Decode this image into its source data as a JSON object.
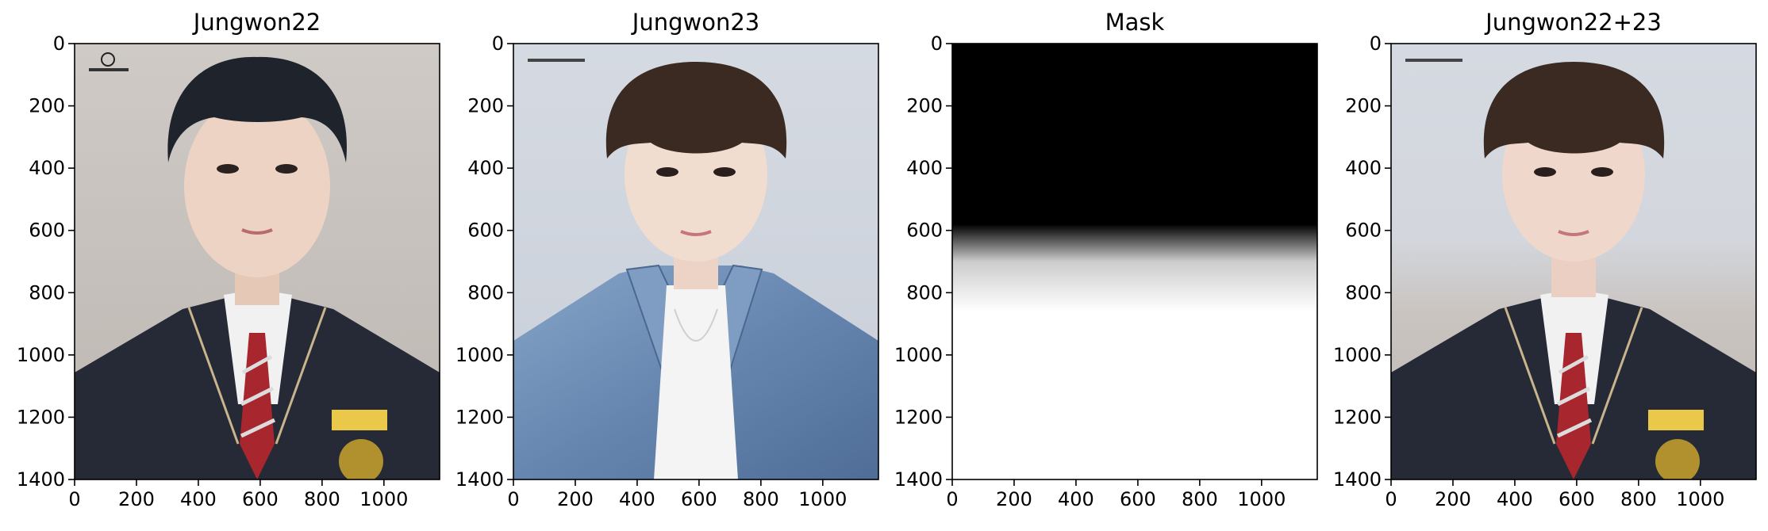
{
  "chart_data": [
    {
      "type": "image",
      "title": "Jungwon22",
      "image_content": "portrait in school uniform",
      "xlim": [
        0,
        1180
      ],
      "ylim": [
        1400,
        0
      ],
      "xticks": [
        0,
        200,
        400,
        600,
        800,
        1000
      ],
      "yticks": [
        0,
        200,
        400,
        600,
        800,
        1000,
        1200,
        1400
      ],
      "colors": {
        "background": "#cdc8c4",
        "hair": "#1f232b",
        "skin": "#ecd3c4",
        "blazer": "#262a36",
        "tie": "#a8262d"
      }
    },
    {
      "type": "image",
      "title": "Jungwon23",
      "image_content": "portrait in denim jacket",
      "xlim": [
        0,
        1180
      ],
      "ylim": [
        1400,
        0
      ],
      "xticks": [
        0,
        200,
        400,
        600,
        800,
        1000
      ],
      "yticks": [
        0,
        200,
        400,
        600,
        800,
        1000,
        1200,
        1400
      ],
      "colors": {
        "background": "#d3d8e0",
        "hair": "#3b2a22",
        "skin": "#f1dcd0",
        "jacket": "#6d8db4",
        "shirt": "#f4f4f4"
      }
    },
    {
      "type": "heatmap",
      "title": "Mask",
      "image_content": "vertical gradient, black at top to white at bottom",
      "xlim": [
        0,
        1180
      ],
      "ylim": [
        1400,
        0
      ],
      "xticks": [
        0,
        200,
        400,
        600,
        800,
        1000
      ],
      "yticks": [
        0,
        200,
        400,
        600,
        800,
        1000,
        1200,
        1400
      ],
      "gradient_stops": [
        {
          "y": 0,
          "value": 0
        },
        {
          "y": 580,
          "value": 0
        },
        {
          "y": 700,
          "value": 0.8
        },
        {
          "y": 860,
          "value": 1
        },
        {
          "y": 1400,
          "value": 1
        }
      ],
      "colors": {
        "low": "#000000",
        "high": "#ffffff"
      }
    },
    {
      "type": "image",
      "title": "Jungwon22+23",
      "image_content": "blended portrait: top from Jungwon23, bottom from Jungwon22",
      "xlim": [
        0,
        1180
      ],
      "ylim": [
        1400,
        0
      ],
      "xticks": [
        0,
        200,
        400,
        600,
        800,
        1000
      ],
      "yticks": [
        0,
        200,
        400,
        600,
        800,
        1000,
        1200,
        1400
      ],
      "colors": {
        "background": "#d3d8e0",
        "hair": "#3b2a22",
        "skin": "#efd8cb",
        "blazer": "#262a36",
        "tie": "#a8262d"
      }
    }
  ]
}
